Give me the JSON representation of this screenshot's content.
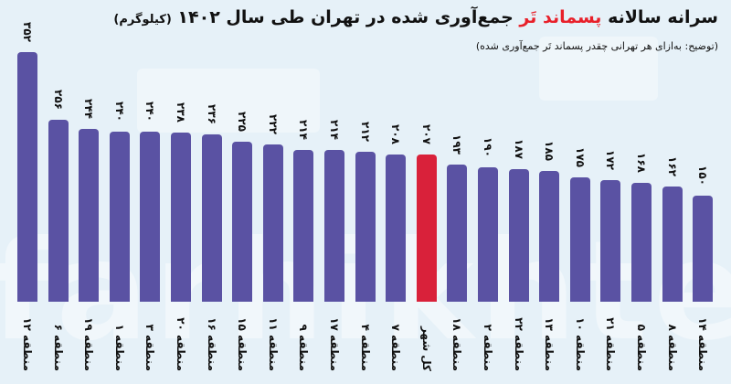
{
  "header": {
    "title_part1": "سرانه سالانه",
    "title_accent": "پسماند تَر",
    "title_part2": "جمع‌آوری شده در تهران طی سال ۱۴۰۲",
    "title_unit": "(کیلوگرم)",
    "subtitle": "(توضیح: به‌ازای هر تهرانی چقدر پسماند تَر جمع‌آوری شده)"
  },
  "watermark": "farhikhtegan",
  "colors": {
    "background": "#e6f1f8",
    "bar": "#5a52a3",
    "highlight": "#d9213a",
    "title_accent": "#e8202a"
  },
  "chart_data": {
    "type": "bar",
    "title": "سرانه سالانه پسماند تَر جمع‌آوری شده در تهران طی سال ۱۴۰۲ (کیلوگرم)",
    "subtitle": "(توضیح: به‌ازای هر تهرانی چقدر پسماند تَر جمع‌آوری شده)",
    "xlabel": "",
    "ylabel": "کیلوگرم",
    "ylim": [
      0,
      352
    ],
    "grid": false,
    "legend": "none",
    "highlight_index": 13,
    "categories": [
      "منطقه ۱۲",
      "منطقه ۶",
      "منطقه ۱۹",
      "منطقه ۱",
      "منطقه ۳",
      "منطقه ۲۰",
      "منطقه ۱۶",
      "منطقه ۱۵",
      "منطقه ۱۱",
      "منطقه ۹",
      "منطقه ۱۷",
      "منطقه ۴",
      "منطقه ۷",
      "کل شهر",
      "منطقه ۱۸",
      "منطقه ۲",
      "منطقه ۲۲",
      "منطقه ۱۳",
      "منطقه ۱۰",
      "منطقه ۲۱",
      "منطقه ۵",
      "منطقه ۸",
      "منطقه ۱۴"
    ],
    "values": [
      352,
      256,
      244,
      240,
      240,
      238,
      236,
      225,
      222,
      214,
      214,
      212,
      208,
      207,
      193,
      190,
      187,
      185,
      175,
      172,
      168,
      162,
      150
    ],
    "value_labels": [
      "۳۵۲",
      "۲۵۶",
      "۲۴۴",
      "۲۴۰",
      "۲۴۰",
      "۲۳۸",
      "۲۳۶",
      "۲۲۵",
      "۲۲۲",
      "۲۱۴",
      "۲۱۴",
      "۲۱۲",
      "۲۰۸",
      "۲۰۷",
      "۱۹۳",
      "۱۹۰",
      "۱۸۷",
      "۱۸۵",
      "۱۷۵",
      "۱۷۲",
      "۱۶۸",
      "۱۶۲",
      "۱۵۰"
    ]
  }
}
